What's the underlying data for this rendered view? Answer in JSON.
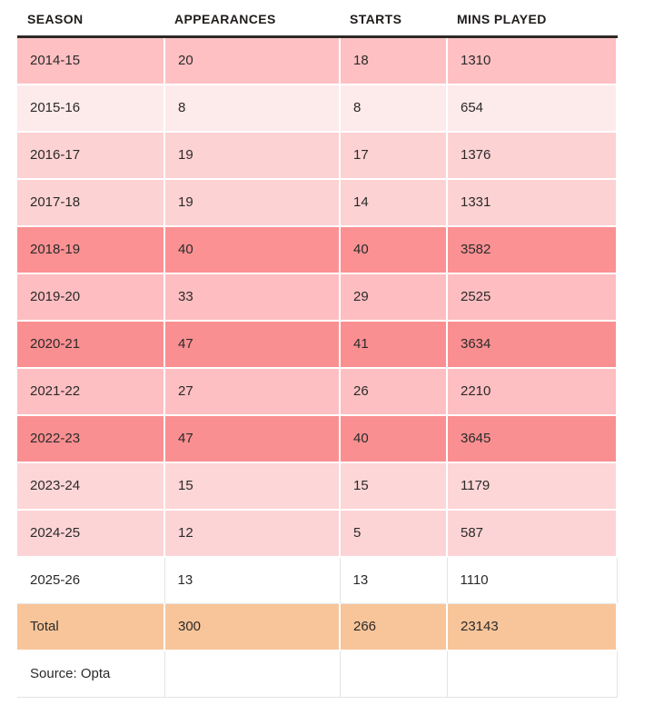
{
  "chart_data": {
    "type": "table",
    "title": "",
    "columns": [
      "SEASON",
      "APPEARANCES",
      "STARTS",
      "MINS PLAYED"
    ],
    "rows": [
      [
        "2014-15",
        20,
        18,
        1310
      ],
      [
        "2015-16",
        8,
        8,
        654
      ],
      [
        "2016-17",
        19,
        17,
        1376
      ],
      [
        "2017-18",
        19,
        14,
        1331
      ],
      [
        "2018-19",
        40,
        40,
        3582
      ],
      [
        "2019-20",
        33,
        29,
        2525
      ],
      [
        "2020-21",
        47,
        41,
        3634
      ],
      [
        "2021-22",
        27,
        26,
        2210
      ],
      [
        "2022-23",
        47,
        40,
        3645
      ],
      [
        "2023-24",
        15,
        15,
        1179
      ],
      [
        "2024-25",
        12,
        5,
        587
      ],
      [
        "2025-26",
        13,
        13,
        1110
      ]
    ],
    "total_row": [
      "Total",
      300,
      266,
      23143
    ],
    "source_note": "Source: Opta"
  },
  "style": {
    "header_rule_color": "#2d2926",
    "text_color": "#2b2a29",
    "plain_border_color": "#e4e4e4",
    "total_row_bg": "#f8c59a",
    "row_backgrounds": [
      "#ffc0c3",
      "#fdeaeb",
      "#fdd2d3",
      "#fdd2d3",
      "#fb9193",
      "#febec1",
      "#fa8f91",
      "#febfc2",
      "#fa8f91",
      "#fdd6d7",
      "#fdd4d6",
      "#ffffff"
    ]
  }
}
